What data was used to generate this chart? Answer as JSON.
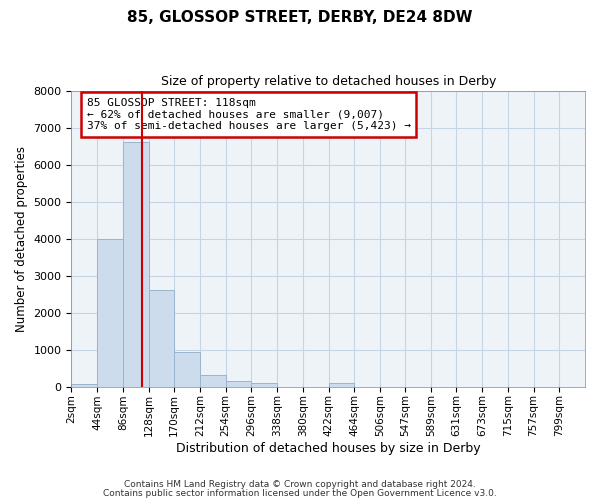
{
  "title1": "85, GLOSSOP STREET, DERBY, DE24 8DW",
  "title2": "Size of property relative to detached houses in Derby",
  "xlabel": "Distribution of detached houses by size in Derby",
  "ylabel": "Number of detached properties",
  "annotation_line1": "85 GLOSSOP STREET: 118sqm",
  "annotation_line2": "← 62% of detached houses are smaller (9,007)",
  "annotation_line3": "37% of semi-detached houses are larger (5,423) →",
  "marker_value": 118,
  "footnote1": "Contains HM Land Registry data © Crown copyright and database right 2024.",
  "footnote2": "Contains public sector information licensed under the Open Government Licence v3.0.",
  "bin_edges": [
    2,
    44,
    86,
    128,
    170,
    212,
    254,
    296,
    338,
    380,
    422,
    464,
    506,
    547,
    589,
    631,
    673,
    715,
    757,
    799,
    841
  ],
  "bar_heights": [
    60,
    3980,
    6600,
    2600,
    950,
    320,
    140,
    100,
    0,
    0,
    100,
    0,
    0,
    0,
    0,
    0,
    0,
    0,
    0,
    0
  ],
  "bar_color": "#ccdcec",
  "bar_edge_color": "#9ab4cc",
  "grid_color": "#c5d5e5",
  "axes_bg_color": "#eef3f8",
  "vline_color": "#cc0000",
  "annotation_box_color": "#cc0000",
  "ylim": [
    0,
    8000
  ],
  "yticks": [
    0,
    1000,
    2000,
    3000,
    4000,
    5000,
    6000,
    7000,
    8000
  ]
}
